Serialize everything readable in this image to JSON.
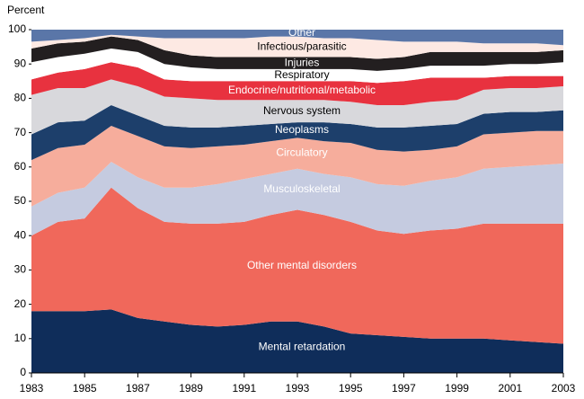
{
  "chart_data": {
    "type": "stacked_area",
    "y_label": "Percent",
    "x": [
      1983,
      1984,
      1985,
      1986,
      1987,
      1988,
      1989,
      1990,
      1991,
      1992,
      1993,
      1994,
      1995,
      1996,
      1997,
      1998,
      1999,
      2000,
      2001,
      2002,
      2003
    ],
    "xlim": [
      1983,
      2003
    ],
    "xticks": [
      1983,
      1985,
      1987,
      1989,
      1991,
      1993,
      1995,
      1997,
      1999,
      2001,
      2003
    ],
    "ylim": [
      0,
      100
    ],
    "yticks": [
      0,
      10,
      20,
      30,
      40,
      50,
      60,
      70,
      80,
      90,
      100
    ],
    "series": [
      {
        "name": "Mental retardation",
        "color": "#0f2d5a",
        "label_color": "#ffffff",
        "values": [
          18,
          18,
          18,
          18.5,
          16,
          15,
          14,
          13.5,
          14,
          15,
          15,
          13.5,
          11.5,
          11,
          10.5,
          10,
          10,
          10,
          9.5,
          9,
          8.5
        ]
      },
      {
        "name": "Other mental disorders",
        "color": "#f0685b",
        "label_color": "#ffffff",
        "values": [
          22,
          26,
          27,
          35.5,
          32,
          29,
          29.5,
          30,
          30,
          31,
          32.5,
          32.5,
          32.5,
          30.5,
          30,
          31.5,
          32,
          33.5,
          34,
          34.5,
          35
        ]
      },
      {
        "name": "Musculoskeletal",
        "color": "#c5cbe0",
        "label_color": "#ffffff",
        "values": [
          8.5,
          8.5,
          9,
          7.5,
          9,
          10,
          10.5,
          11.5,
          12.5,
          12,
          12,
          12,
          13,
          13.5,
          14,
          14.5,
          15,
          16,
          16.5,
          17,
          17.5
        ]
      },
      {
        "name": "Circulatory",
        "color": "#f6ad9c",
        "label_color": "#ffffff",
        "values": [
          13.5,
          13,
          12.5,
          10.5,
          12,
          12,
          11.5,
          11,
          10,
          9.5,
          9,
          9.5,
          10,
          10,
          10,
          9,
          9,
          10,
          10,
          10,
          9.5
        ]
      },
      {
        "name": "Neoplasms",
        "color": "#1d3f6b",
        "label_color": "#ffffff",
        "values": [
          7.5,
          7.5,
          7,
          6,
          6,
          6,
          6,
          5.5,
          5.5,
          5,
          4.5,
          5.5,
          5.5,
          6.5,
          7,
          7,
          6.5,
          6,
          6,
          5.5,
          6
        ]
      },
      {
        "name": "Nervous system",
        "color": "#d8d8dc",
        "label_color": "#000000",
        "values": [
          11.5,
          10,
          9.5,
          7.5,
          8.5,
          8.5,
          8.5,
          8,
          7.5,
          7,
          6.5,
          6.5,
          6.5,
          6.5,
          6.5,
          7,
          7,
          7,
          7,
          7,
          7
        ]
      },
      {
        "name": "Endocrine/nutritional/metabolic",
        "color": "#e8323f",
        "label_color": "#ffffff",
        "values": [
          4.5,
          4.5,
          5.5,
          5,
          5.5,
          5,
          5,
          5.5,
          5.5,
          5.5,
          5.5,
          5.5,
          6,
          6.5,
          7,
          7,
          6.5,
          3.5,
          3.5,
          3.5,
          3
        ]
      },
      {
        "name": "Respiratory",
        "color": "#ffffff",
        "label_color": "#000000",
        "values": [
          5,
          4.5,
          4.5,
          4,
          4.5,
          4.5,
          4,
          3.5,
          3.5,
          3.5,
          3.5,
          3.5,
          3.5,
          3.5,
          3.5,
          3.5,
          3.5,
          3.5,
          3.5,
          3.5,
          4
        ]
      },
      {
        "name": "Injuries",
        "color": "#231f20",
        "label_color": "#ffffff",
        "values": [
          4,
          4,
          3.5,
          3.5,
          3.5,
          4,
          3.5,
          3.5,
          3.5,
          3.5,
          3.5,
          3.5,
          3.5,
          3.5,
          3.5,
          4,
          4,
          4,
          3.5,
          3.5,
          3.5
        ]
      },
      {
        "name": "Infectious/parasitic",
        "color": "#fde9e3",
        "label_color": "#000000",
        "values": [
          2,
          1,
          1,
          0.5,
          1,
          3.5,
          5,
          5.5,
          5.5,
          6,
          6,
          5.5,
          5.5,
          5.5,
          4.5,
          3,
          3,
          2.5,
          2.5,
          2.5,
          1.5
        ]
      },
      {
        "name": "Other",
        "color": "#5a76a8",
        "label_color": "#ffffff",
        "values": [
          3.5,
          3,
          2.5,
          1.5,
          2,
          2.5,
          2.5,
          2.5,
          2.5,
          2,
          2,
          2.5,
          2.5,
          3,
          3.5,
          3.5,
          3.5,
          4,
          4,
          4,
          4.5
        ]
      }
    ]
  }
}
